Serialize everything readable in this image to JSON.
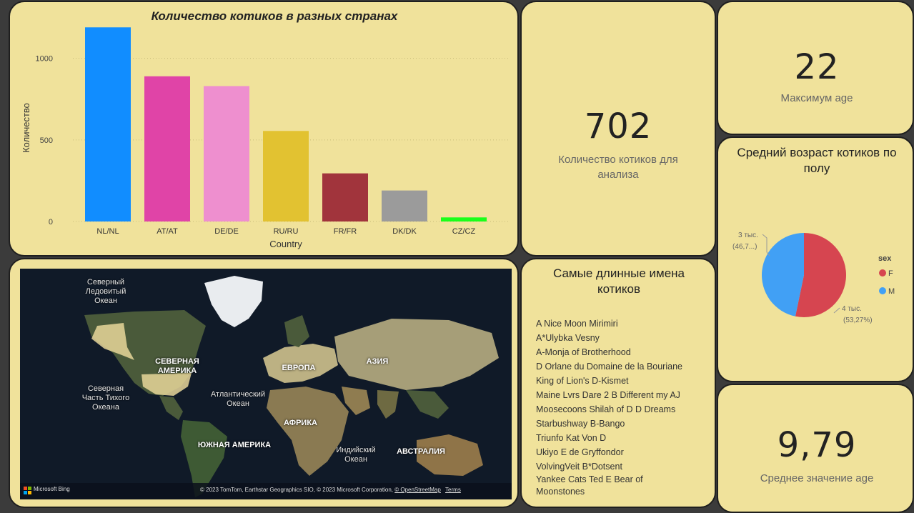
{
  "bar_card": {
    "title": "Количество котиков в разных странах"
  },
  "chart_data": {
    "type": "bar",
    "title": "Количество котиков в разных странах",
    "xlabel": "Country",
    "ylabel": "Количество",
    "categories": [
      "NL/NL",
      "AT/AT",
      "DE/DE",
      "RU/RU",
      "FR/FR",
      "DK/DK",
      "CZ/CZ"
    ],
    "values": [
      1190,
      890,
      830,
      555,
      295,
      190,
      25
    ],
    "colors": [
      "#118dff",
      "#e044a7",
      "#ee8fcf",
      "#e2c231",
      "#a1343c",
      "#9b9b9b",
      "#1aff1a"
    ],
    "yticks": [
      0,
      500,
      1000
    ],
    "ylim": [
      0,
      1200
    ],
    "grid": true
  },
  "kpi_count": {
    "value": "702",
    "label": "Количество котиков для анализа"
  },
  "kpi_max": {
    "value": "22",
    "label": "Максимум age"
  },
  "kpi_avg": {
    "value": "9,79",
    "label": "Среднее значение age"
  },
  "pie_card": {
    "title": "Средний возраст котиков по полу",
    "legend_title": "sex",
    "legend": [
      {
        "label": "F",
        "color": "#d64550"
      },
      {
        "label": "M",
        "color": "#41a0f5"
      }
    ],
    "label_m_line1": "3 тыс.",
    "label_m_line2": "(46,7...)",
    "label_f_line1": "4 тыс.",
    "label_f_line2": "(53,27%)",
    "slices": [
      {
        "name": "F",
        "percent": 53.27
      },
      {
        "name": "M",
        "percent": 46.73
      }
    ]
  },
  "names_card": {
    "title": "Самые длинные имена котиков",
    "names": [
      "A Nice Moon Mirimiri",
      "A*Ulybka Vesny",
      "A-Monja of Brotherhood",
      "D Orlane du Domaine de la Bouriane",
      "King of Lion's D-Kismet",
      "Maine Lvrs Dare 2 B Different my AJ",
      "Moosecoons Shilah of D D Dreams",
      "Starbushway B-Bango",
      "Triunfo Kat Von D",
      "Ukiyo E de Gryffondor",
      "VolvingVeit B*Dotsent",
      "Yankee Cats Ted E Bear of Moonstones"
    ]
  },
  "map_card": {
    "labels": {
      "arctic": "Северный Ледовитый Океан",
      "north_america": "СЕВЕРНАЯ АМЕРИКА",
      "europe": "ЕВРОПА",
      "asia": "АЗИЯ",
      "pacific": "Северная Часть Тихого Океана",
      "atlantic": "Атлантический Океан",
      "africa": "АФРИКА",
      "south_america": "ЮЖНАЯ АМЕРИКА",
      "indian": "Индийский Океан",
      "australia": "АВСТРАЛИЯ"
    },
    "bing": "Microsoft Bing",
    "attribution": "© 2023 TomTom, Earthstar Geographics SIO, © 2023 Microsoft Corporation,",
    "osm": "© OpenStreetMap",
    "terms": "Terms"
  }
}
